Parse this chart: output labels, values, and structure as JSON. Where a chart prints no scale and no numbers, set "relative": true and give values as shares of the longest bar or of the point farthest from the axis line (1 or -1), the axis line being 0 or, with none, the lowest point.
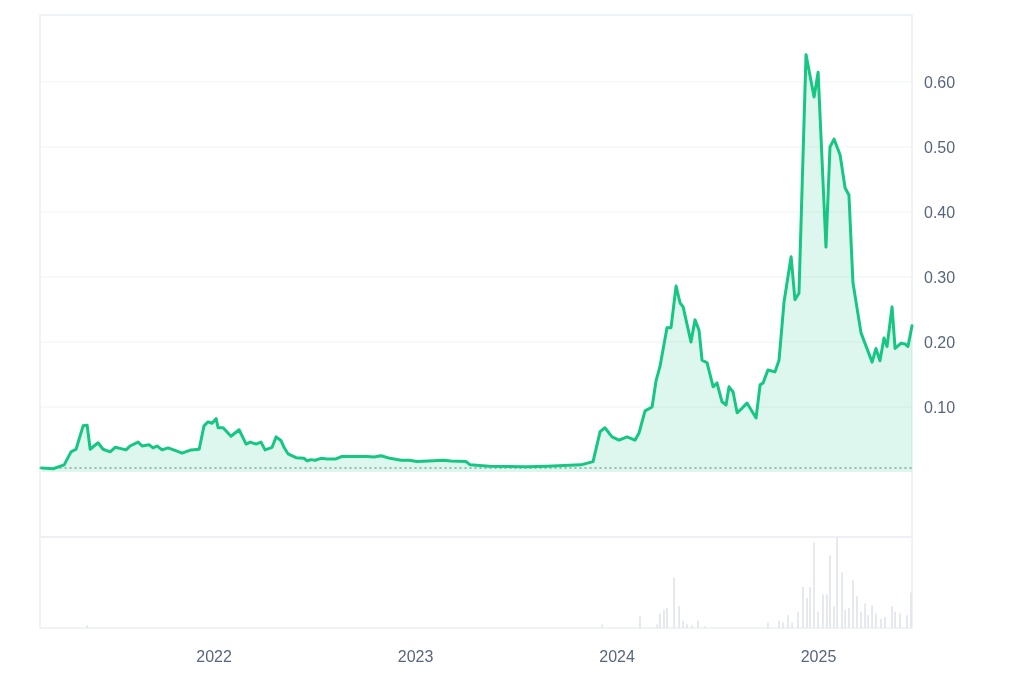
{
  "chart_data": [
    {
      "type": "area",
      "x": [
        2021.144,
        2021.201,
        2021.256,
        2021.29,
        2021.315,
        2021.35,
        2021.37,
        2021.385,
        2021.424,
        2021.449,
        2021.484,
        2021.509,
        2021.563,
        2021.583,
        2021.623,
        2021.643,
        2021.677,
        2021.697,
        2021.717,
        2021.742,
        2021.772,
        2021.816,
        2021.841,
        2021.886,
        2021.926,
        2021.95,
        2021.97,
        2021.99,
        2022.01,
        2022.02,
        2022.045,
        2022.084,
        2022.124,
        2022.159,
        2022.179,
        2022.208,
        2022.233,
        2022.253,
        2022.288,
        2022.308,
        2022.333,
        2022.347,
        2022.367,
        2022.407,
        2022.447,
        2022.462,
        2022.481,
        2022.501,
        2022.531,
        2022.561,
        2022.605,
        2022.635,
        2022.7,
        2022.759,
        2022.794,
        2022.829,
        2022.873,
        2022.928,
        2022.968,
        2023.007,
        2023.062,
        2023.137,
        2023.176,
        2023.251,
        2023.271,
        2023.365,
        2023.553,
        2023.653,
        2023.821,
        2023.881,
        2023.916,
        2023.94,
        2023.975,
        2024.01,
        2024.05,
        2024.089,
        2024.109,
        2024.139,
        2024.174,
        2024.194,
        2024.213,
        2024.248,
        2024.268,
        2024.293,
        2024.313,
        2024.328,
        2024.367,
        2024.387,
        2024.407,
        2024.422,
        2024.447,
        2024.477,
        2024.496,
        2024.521,
        2024.541,
        2024.556,
        2024.576,
        2024.596,
        2024.62,
        2024.645,
        2024.69,
        2024.71,
        2024.725,
        2024.749,
        2024.784,
        2024.804,
        2024.829,
        2024.864,
        2024.883,
        2024.903,
        2024.938,
        2024.978,
        2024.998,
        2025.037,
        2025.057,
        2025.077,
        2025.107,
        2025.132,
        2025.151,
        2025.171,
        2025.211,
        2025.266,
        2025.285,
        2025.305,
        2025.325,
        2025.34,
        2025.365,
        2025.38,
        2025.409,
        2025.429,
        2025.444,
        2025.464
      ],
      "series": [
        {
          "color": "#16c784",
          "values": [
            0.006,
            0.005,
            0.011,
            0.031,
            0.035,
            0.071,
            0.072,
            0.035,
            0.045,
            0.035,
            0.031,
            0.038,
            0.034,
            0.04,
            0.046,
            0.04,
            0.042,
            0.037,
            0.04,
            0.034,
            0.037,
            0.032,
            0.029,
            0.034,
            0.035,
            0.071,
            0.077,
            0.075,
            0.082,
            0.068,
            0.068,
            0.055,
            0.065,
            0.043,
            0.046,
            0.043,
            0.046,
            0.034,
            0.038,
            0.054,
            0.048,
            0.038,
            0.028,
            0.022,
            0.021,
            0.017,
            0.019,
            0.018,
            0.021,
            0.02,
            0.02,
            0.024,
            0.024,
            0.024,
            0.023,
            0.025,
            0.021,
            0.018,
            0.018,
            0.016,
            0.017,
            0.018,
            0.017,
            0.016,
            0.011,
            0.009,
            0.008,
            0.009,
            0.011,
            0.016,
            0.062,
            0.068,
            0.054,
            0.049,
            0.054,
            0.049,
            0.06,
            0.094,
            0.1,
            0.141,
            0.162,
            0.222,
            0.222,
            0.286,
            0.26,
            0.254,
            0.2,
            0.234,
            0.218,
            0.172,
            0.168,
            0.131,
            0.137,
            0.108,
            0.103,
            0.131,
            0.123,
            0.091,
            0.098,
            0.106,
            0.083,
            0.134,
            0.137,
            0.157,
            0.154,
            0.172,
            0.262,
            0.331,
            0.265,
            0.275,
            0.642,
            0.577,
            0.615,
            0.346,
            0.5,
            0.512,
            0.488,
            0.437,
            0.426,
            0.291,
            0.214,
            0.169,
            0.19,
            0.171,
            0.206,
            0.193,
            0.254,
            0.19,
            0.198,
            0.197,
            0.193,
            0.225
          ]
        }
      ],
      "xlim": [
        2021.136,
        2025.464
      ],
      "ylim": [
        -0.1,
        0.703
      ],
      "yticks": [
        {
          "value": 0.1,
          "label": "0.10"
        },
        {
          "value": 0.2,
          "label": "0.20"
        },
        {
          "value": 0.3,
          "label": "0.30"
        },
        {
          "value": 0.4,
          "label": "0.40"
        },
        {
          "value": 0.5,
          "label": "0.50"
        },
        {
          "value": 0.6,
          "label": "0.60"
        }
      ],
      "grid": "y",
      "tick_labels": "y",
      "ref_lines": [
        {
          "axis": "y",
          "value": 0.006,
          "color": "#9aa0a6",
          "line_style": "dotted"
        }
      ]
    },
    {
      "type": "bar",
      "relative": true,
      "x": [
        2021.37,
        2023.926,
        2024.114,
        2024.199,
        2024.213,
        2024.233,
        2024.248,
        2024.283,
        2024.308,
        2024.328,
        2024.347,
        2024.372,
        2024.402,
        2024.437,
        2024.749,
        2024.804,
        2024.824,
        2024.849,
        2024.869,
        2024.898,
        2024.923,
        2024.943,
        2024.958,
        2024.978,
        2024.998,
        2025.022,
        2025.042,
        2025.057,
        2025.077,
        2025.092,
        2025.117,
        2025.132,
        2025.151,
        2025.171,
        2025.191,
        2025.211,
        2025.231,
        2025.246,
        2025.266,
        2025.285,
        2025.31,
        2025.33,
        2025.365,
        2025.38,
        2025.404,
        2025.439,
        2025.459
      ],
      "series": [
        {
          "color": "#e3e7ee",
          "values": [
            0.03,
            0.04,
            0.13,
            0.04,
            0.16,
            0.2,
            0.22,
            0.55,
            0.24,
            0.08,
            0.04,
            0.03,
            0.08,
            0.02,
            0.06,
            0.08,
            0.06,
            0.14,
            0.06,
            0.18,
            0.45,
            0.33,
            0.45,
            0.94,
            0.18,
            0.37,
            0.37,
            0.8,
            0.24,
            1,
            0.61,
            0.2,
            0.22,
            0.53,
            0.35,
            0.18,
            0.27,
            0.14,
            0.25,
            0.16,
            0.1,
            0.12,
            0.24,
            0.18,
            0.16,
            0.14,
            0.39
          ]
        }
      ],
      "xlim": [
        2021.136,
        2025.464
      ],
      "xticks": [
        2022,
        2023,
        2024,
        2025
      ],
      "tick_labels": "x"
    }
  ]
}
